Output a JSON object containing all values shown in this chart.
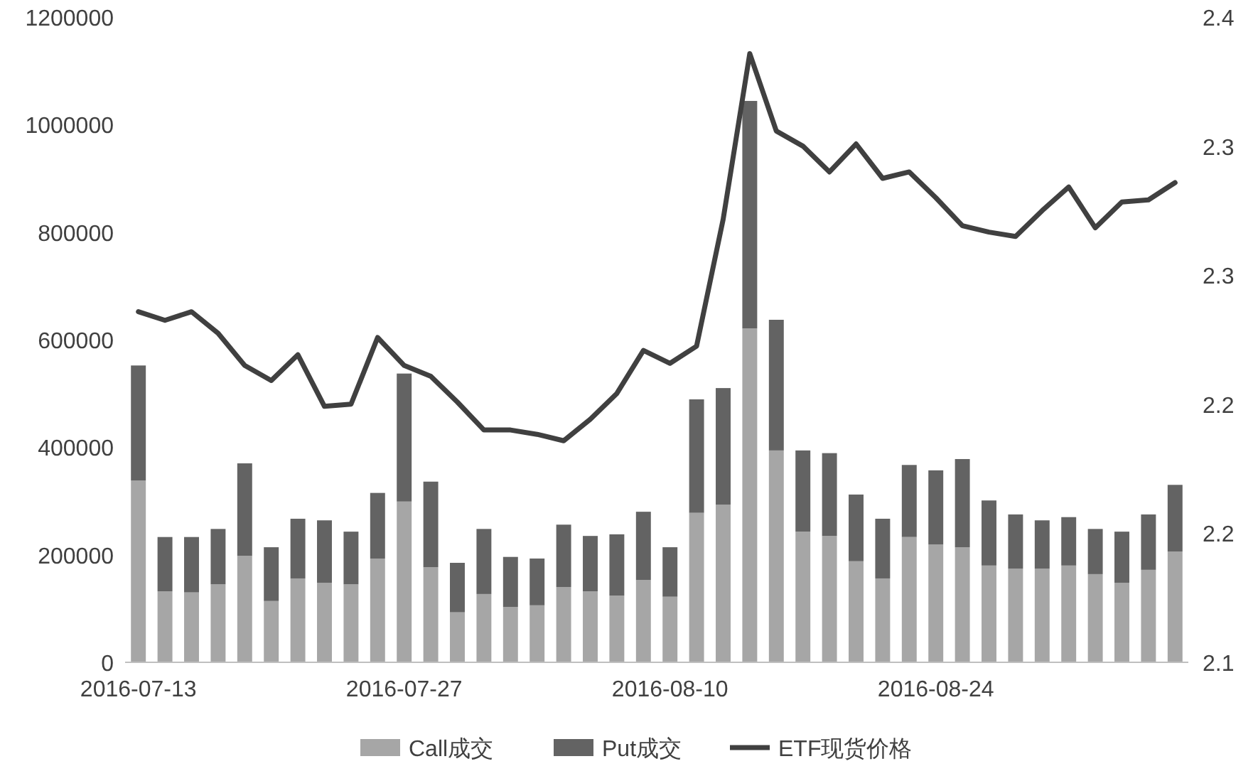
{
  "chart_data": {
    "type": "bar",
    "stacked": true,
    "categories": [
      "2016-07-13",
      null,
      null,
      null,
      null,
      null,
      null,
      null,
      null,
      null,
      "2016-07-27",
      null,
      null,
      null,
      null,
      null,
      null,
      null,
      null,
      null,
      "2016-08-10",
      null,
      null,
      null,
      null,
      null,
      null,
      null,
      null,
      null,
      "2016-08-24",
      null,
      null,
      null,
      null,
      null,
      null,
      null,
      null,
      null
    ],
    "series": [
      {
        "name": "Call成交",
        "color": "#a6a6a6",
        "values": [
          338000,
          132000,
          130000,
          145000,
          198000,
          114000,
          156000,
          148000,
          145000,
          193000,
          299000,
          177000,
          93000,
          127000,
          103000,
          106000,
          140000,
          132000,
          124000,
          153000,
          122000,
          278000,
          293000,
          621000,
          394000,
          243000,
          235000,
          188000,
          156000,
          233000,
          219000,
          214000,
          180000,
          174000,
          174000,
          180000,
          164000,
          148000,
          172000,
          206000
        ]
      },
      {
        "name": "Put成交",
        "color": "#636363",
        "values": [
          214000,
          101000,
          103000,
          103000,
          172000,
          100000,
          111000,
          116000,
          98000,
          122000,
          238000,
          159000,
          92000,
          121000,
          93000,
          87000,
          116000,
          103000,
          114000,
          127000,
          92000,
          211000,
          217000,
          423000,
          243000,
          151000,
          154000,
          124000,
          111000,
          134000,
          138000,
          164000,
          121000,
          101000,
          90000,
          90000,
          84000,
          95000,
          103000,
          124000
        ]
      },
      {
        "name": "ETF现货价格",
        "type": "line",
        "axis": "y2",
        "color": "#404040",
        "values": [
          2.263,
          2.259,
          2.263,
          2.253,
          2.238,
          2.231,
          2.243,
          2.219,
          2.22,
          2.251,
          2.238,
          2.233,
          2.221,
          2.208,
          2.208,
          2.206,
          2.203,
          2.213,
          2.225,
          2.245,
          2.239,
          2.247,
          2.306,
          2.383,
          2.347,
          2.34,
          2.328,
          2.341,
          2.325,
          2.328,
          2.316,
          2.303,
          2.3,
          2.298,
          2.31,
          2.321,
          2.302,
          2.314,
          2.315,
          2.323
        ]
      }
    ],
    "ylim": [
      0,
      1200000
    ],
    "yticks": [
      0,
      200000,
      400000,
      600000,
      800000,
      1000000,
      1200000
    ],
    "y2lim": [
      2.1,
      2.4
    ],
    "y2ticks": [
      2.1,
      {
        "value": 2.16,
        "label": "2.2"
      },
      {
        "value": 2.22,
        "label": "2.2"
      },
      {
        "value": 2.28,
        "label": "2.3"
      },
      {
        "value": 2.34,
        "label": "2.3"
      },
      2.4
    ],
    "legend": "bottom",
    "grid": false
  }
}
